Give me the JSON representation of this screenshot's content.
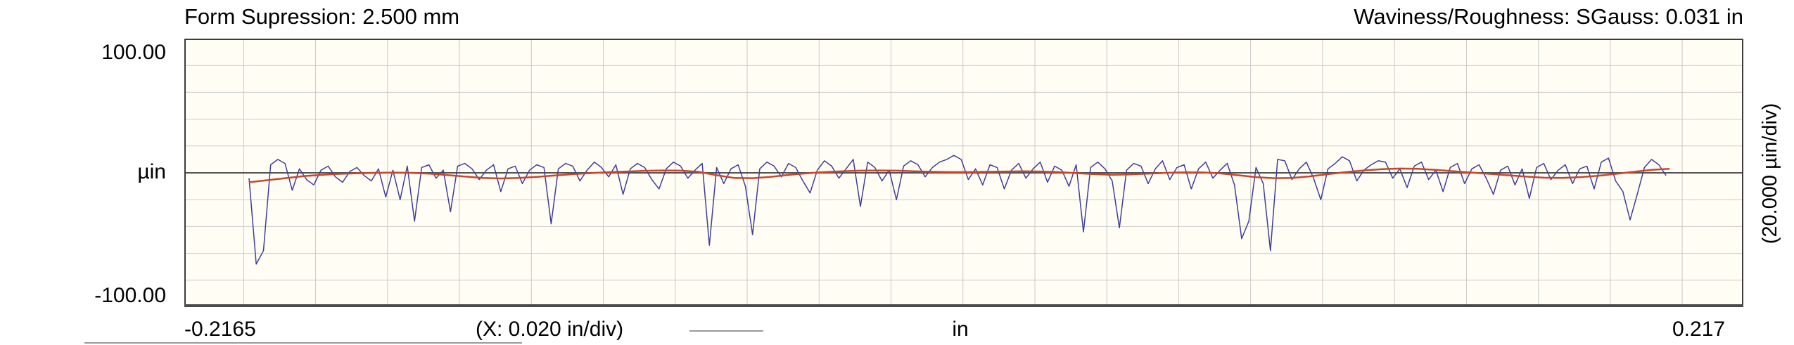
{
  "header": {
    "left_title": "Form Supression: 2.500 mm",
    "right_title": "Waviness/Roughness: SGauss: 0.031 in"
  },
  "y_axis": {
    "top_label": "100.00",
    "unit_label": "µin",
    "bottom_label": "-100.00",
    "right_div_label": "(20.000 µin/div)"
  },
  "x_axis": {
    "left_label": "-0.2165",
    "div_label": "(X: 0.020 in/div)",
    "unit_label": "in",
    "right_label": "0.217"
  },
  "colors": {
    "roughness": "#3e3e9c",
    "waviness": "#c8452c",
    "grid": "#c9c9c9",
    "zero_line": "#555555",
    "plot_border": "#3c3c3c",
    "plot_bottom_border": "#4a4a4a",
    "plot_bg": "#fffdf4",
    "divider": "#aaaaaa"
  },
  "chart_data": {
    "type": "line",
    "title": "Form Supression: 2.500 mm",
    "subtitle": "Waviness/Roughness: SGauss: 0.031 in",
    "xlabel": "in",
    "ylabel": "µin",
    "xlim": [
      -0.2165,
      0.217
    ],
    "ylim": [
      -100,
      100
    ],
    "x_div": 0.02,
    "y_div": 20,
    "grid": true,
    "legend_position": "none",
    "series": [
      {
        "name": "roughness",
        "color_key": "roughness",
        "width": 1.5,
        "x_start": -0.1985,
        "x_step": 0.002,
        "values": [
          -4,
          -68,
          -58,
          6,
          10,
          7,
          -13,
          3,
          -5,
          -9,
          2,
          5,
          -3,
          -7,
          1,
          4,
          -2,
          -6,
          3,
          -18,
          2,
          -20,
          5,
          -36,
          4,
          6,
          -4,
          2,
          -29,
          5,
          7,
          3,
          -5,
          2,
          6,
          -14,
          3,
          5,
          -8,
          2,
          6,
          4,
          -38,
          3,
          7,
          5,
          -6,
          2,
          8,
          4,
          -3,
          6,
          -16,
          3,
          7,
          4,
          -5,
          -12,
          3,
          8,
          5,
          -4,
          2,
          7,
          -54,
          4,
          -8,
          3,
          6,
          -10,
          -46,
          3,
          8,
          5,
          -3,
          7,
          4,
          -6,
          -15,
          2,
          9,
          5,
          -4,
          3,
          10,
          -25,
          8,
          4,
          -6,
          2,
          -20,
          5,
          9,
          6,
          -3,
          4,
          8,
          10,
          13,
          10,
          -5,
          3,
          -9,
          6,
          4,
          -12,
          2,
          7,
          -4,
          3,
          8,
          -7,
          5,
          2,
          -10,
          6,
          -44,
          4,
          8,
          3,
          -6,
          -41,
          2,
          7,
          5,
          -8,
          3,
          9,
          -5,
          4,
          6,
          -12,
          3,
          8,
          -4,
          2,
          7,
          -9,
          -49,
          -36,
          4,
          -8,
          -58,
          10,
          9,
          -5,
          3,
          8,
          -4,
          -20,
          3,
          7,
          12,
          9,
          -6,
          2,
          6,
          9,
          8,
          -4,
          3,
          -11,
          5,
          8,
          -5,
          2,
          -14,
          4,
          7,
          -8,
          3,
          6,
          -4,
          -16,
          2,
          5,
          -9,
          3,
          -19,
          4,
          7,
          -5,
          2,
          6,
          -8,
          3,
          5,
          -12,
          8,
          11,
          -6,
          -14,
          -35,
          -16,
          4,
          10,
          6,
          -2
        ]
      },
      {
        "name": "waviness",
        "color_key": "waviness",
        "width": 2.5,
        "x_start": -0.1985,
        "x_step": 0.005,
        "values": [
          -7.0,
          -5.5,
          -4.0,
          -2.5,
          -1.5,
          -0.8,
          -0.3,
          0.0,
          0.2,
          0.0,
          -0.6,
          -1.6,
          -2.8,
          -3.8,
          -4.2,
          -3.8,
          -3.0,
          -2.0,
          -1.0,
          -0.2,
          0.5,
          1.0,
          1.5,
          1.8,
          1.6,
          0.8,
          -1.8,
          -3.8,
          -4.0,
          -3.0,
          -1.5,
          -0.3,
          0.6,
          1.2,
          1.6,
          1.8,
          1.6,
          1.2,
          0.8,
          0.6,
          0.6,
          0.8,
          1.0,
          1.2,
          1.0,
          0.6,
          -0.2,
          -1.0,
          -1.4,
          -1.2,
          -0.6,
          0.0,
          0.4,
          0.3,
          -0.4,
          -1.8,
          -3.2,
          -4.0,
          -3.8,
          -2.6,
          -1.0,
          0.6,
          1.8,
          2.8,
          3.2,
          3.0,
          2.2,
          1.2,
          0.2,
          -0.8,
          -1.8,
          -2.8,
          -3.6,
          -3.8,
          -3.2,
          -2.2,
          -0.8,
          0.8,
          2.2,
          3.0
        ]
      }
    ]
  }
}
